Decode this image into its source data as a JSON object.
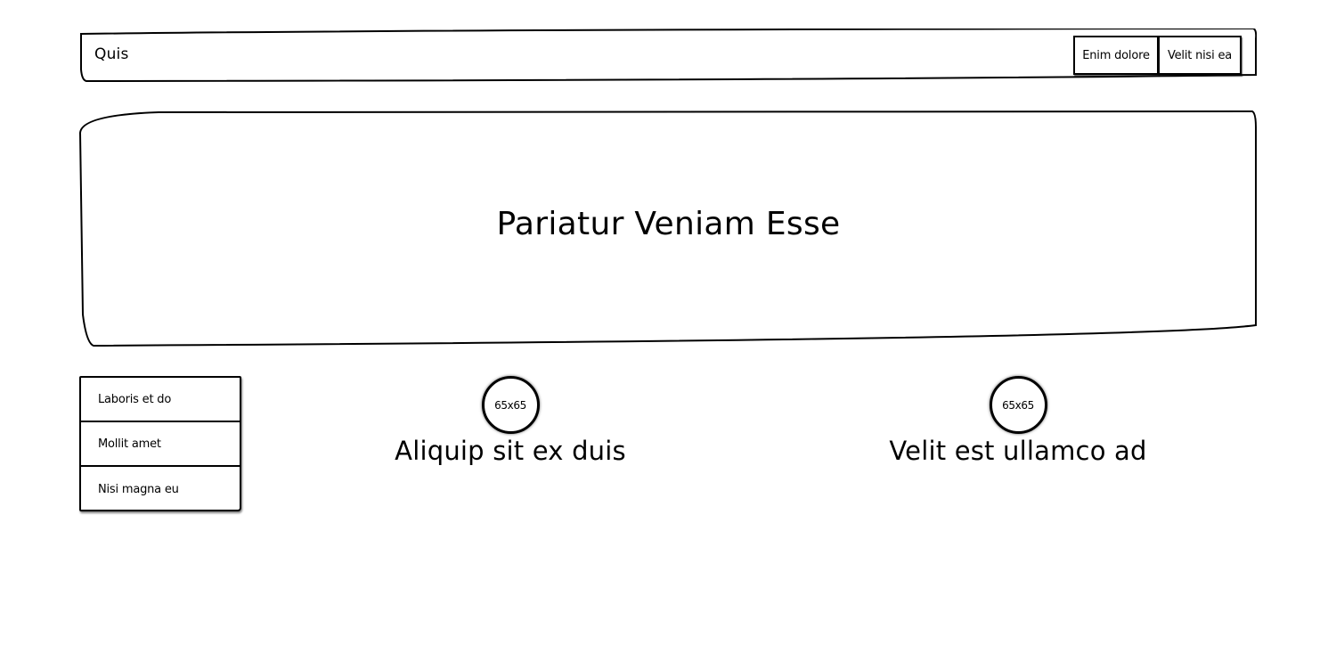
{
  "header": {
    "brand": "Quis",
    "nav": [
      {
        "label": "Enim dolore"
      },
      {
        "label": "Velit nisi ea"
      }
    ]
  },
  "hero": {
    "title": "Pariatur Veniam Esse"
  },
  "side_menu": {
    "items": [
      {
        "label": "Laboris et do"
      },
      {
        "label": "Mollit amet"
      },
      {
        "label": "Nisi magna eu"
      }
    ]
  },
  "cards": [
    {
      "image_label": "65x65",
      "title": "Aliquip sit ex duis"
    },
    {
      "image_label": "65x65",
      "title": "Velit est ullamco ad"
    }
  ]
}
